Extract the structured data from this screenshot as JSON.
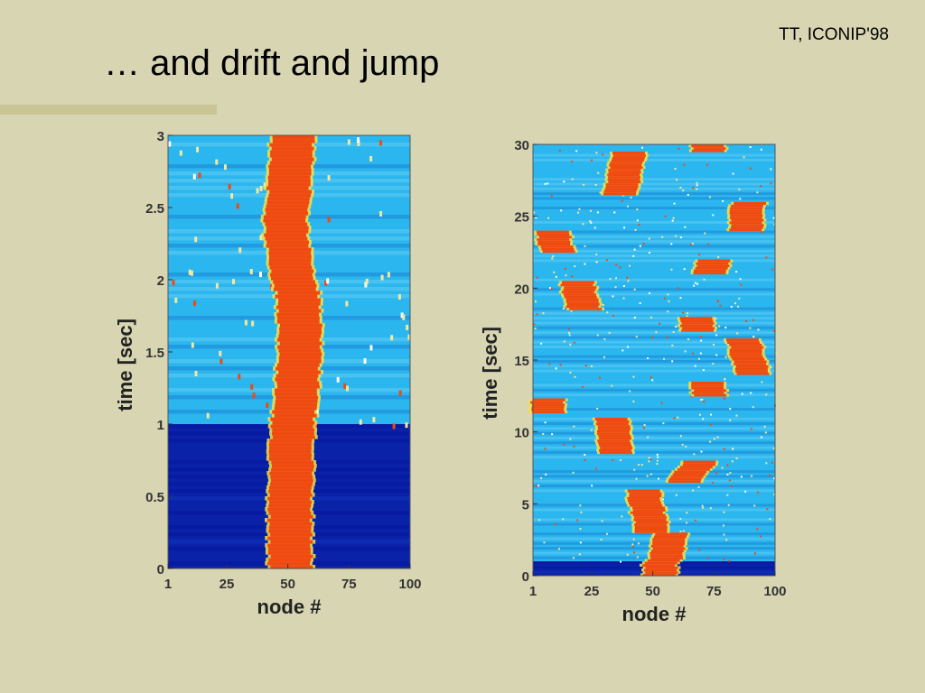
{
  "slide": {
    "title": "… and drift and jump",
    "header_tag": "TT, ICONIP'98"
  },
  "colors": {
    "background": "#d8d5b2",
    "rule": "#c9c594",
    "map_low": "#0a22a8",
    "map_mid": "#2bb6ee",
    "map_high": "#ee4a12",
    "map_peak": "#f2e24a"
  },
  "chart_data": [
    {
      "type": "heatmap",
      "xlabel": "node #",
      "ylabel": "time [sec]",
      "xlim": [
        1,
        100
      ],
      "ylim": [
        0,
        3
      ],
      "xticks": [
        1,
        25,
        50,
        75,
        100
      ],
      "yticks": [
        0,
        0.5,
        1,
        1.5,
        2,
        2.5,
        3
      ],
      "ytick_labels": [
        "0",
        "0.5",
        "1",
        "1.5",
        "2",
        "2.5",
        "3"
      ],
      "baseline_switch_time": 1,
      "bump_width_nodes": 18,
      "bump_center_track": [
        {
          "t": 0,
          "node": 51
        },
        {
          "t": 0.5,
          "node": 51
        },
        {
          "t": 1.0,
          "node": 52
        },
        {
          "t": 1.3,
          "node": 54
        },
        {
          "t": 1.6,
          "node": 55
        },
        {
          "t": 1.9,
          "node": 54
        },
        {
          "t": 2.1,
          "node": 51
        },
        {
          "t": 2.4,
          "node": 49
        },
        {
          "t": 2.7,
          "node": 51
        },
        {
          "t": 3.0,
          "node": 52
        }
      ]
    },
    {
      "type": "heatmap",
      "xlabel": "node #",
      "ylabel": "time [sec]",
      "xlim": [
        1,
        100
      ],
      "ylim": [
        0,
        30
      ],
      "xticks": [
        1,
        25,
        50,
        75,
        100
      ],
      "yticks": [
        0,
        5,
        10,
        15,
        20,
        25,
        30
      ],
      "ytick_labels": [
        "0",
        "5",
        "10",
        "15",
        "20",
        "25",
        "30"
      ],
      "baseline_switch_time": 1,
      "bump_width_nodes": 14,
      "bump_segments": [
        {
          "t0": 0,
          "t1": 1,
          "n0": 53,
          "n1": 53
        },
        {
          "t0": 1,
          "t1": 3,
          "n0": 55,
          "n1": 57
        },
        {
          "t0": 3,
          "t1": 6,
          "n0": 50,
          "n1": 46
        },
        {
          "t0": 6.5,
          "t1": 8,
          "n0": 62,
          "n1": 70
        },
        {
          "t0": 8.5,
          "t1": 11,
          "n0": 35,
          "n1": 33
        },
        {
          "t0": 11.3,
          "t1": 12.3,
          "n0": 7,
          "n1": 7
        },
        {
          "t0": 12.5,
          "t1": 13.5,
          "n0": 73,
          "n1": 73
        },
        {
          "t0": 14,
          "t1": 16.5,
          "n0": 91,
          "n1": 87
        },
        {
          "t0": 17,
          "t1": 18,
          "n0": 68,
          "n1": 68
        },
        {
          "t0": 18.5,
          "t1": 20.5,
          "n0": 22,
          "n1": 19
        },
        {
          "t0": 21,
          "t1": 22,
          "n0": 73,
          "n1": 75
        },
        {
          "t0": 22.5,
          "t1": 24,
          "n0": 11,
          "n1": 9
        },
        {
          "t0": 24,
          "t1": 26,
          "n0": 88,
          "n1": 89
        },
        {
          "t0": 26.5,
          "t1": 29.5,
          "n0": 37,
          "n1": 40
        },
        {
          "t0": 29.5,
          "t1": 30,
          "n0": 73,
          "n1": 73
        }
      ]
    }
  ]
}
